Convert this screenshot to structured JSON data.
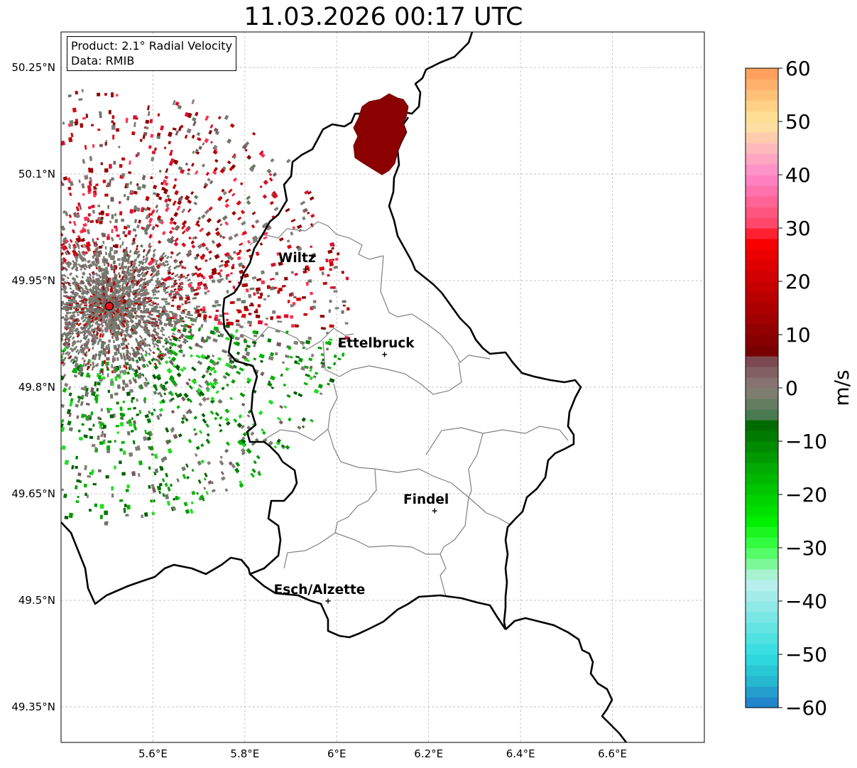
{
  "title": "11.03.2026 00:17 UTC",
  "info": {
    "product": "Product: 2.1° Radial Velocity",
    "data": "Data: RMIB"
  },
  "lat_ticks": [
    {
      "value": 50.25,
      "label": "50.25°N"
    },
    {
      "value": 50.1,
      "label": "50.1°N"
    },
    {
      "value": 49.95,
      "label": "49.95°N"
    },
    {
      "value": 49.8,
      "label": "49.8°N"
    },
    {
      "value": 49.65,
      "label": "49.65°N"
    },
    {
      "value": 49.5,
      "label": "49.5°N"
    },
    {
      "value": 49.35,
      "label": "49.35°N"
    }
  ],
  "lon_ticks": [
    {
      "value": 5.6,
      "label": "5.6°E"
    },
    {
      "value": 5.8,
      "label": "5.8°E"
    },
    {
      "value": 6.0,
      "label": "6°E"
    },
    {
      "value": 6.2,
      "label": "6.2°E"
    },
    {
      "value": 6.4,
      "label": "6.4°E"
    },
    {
      "value": 6.6,
      "label": "6.6°E"
    }
  ],
  "map_extent": {
    "lon_min": 5.4,
    "lon_max": 6.8,
    "lat_min": 49.3,
    "lat_max": 50.3
  },
  "radar": {
    "lon": 5.505,
    "lat": 49.914,
    "color": "#e8141b"
  },
  "cities": [
    {
      "name": "Wiltz",
      "lon": 5.932,
      "lat": 49.966
    },
    {
      "name": "Ettelbruck",
      "lon": 6.104,
      "lat": 49.846
    },
    {
      "name": "Findel",
      "lon": 6.213,
      "lat": 49.626
    },
    {
      "name": "Esch/Alzette",
      "lon": 5.981,
      "lat": 49.499
    }
  ],
  "colorbar": {
    "label": "m/s",
    "min": -60,
    "max": 60,
    "ticks": [
      60,
      50,
      40,
      30,
      20,
      10,
      0,
      -10,
      -20,
      -30,
      -40,
      -50,
      -60
    ],
    "tick_labels": [
      "60",
      "50",
      "40",
      "30",
      "20",
      "10",
      "0",
      "−10",
      "−20",
      "−30",
      "−40",
      "−50",
      "−60"
    ],
    "stops": [
      {
        "v": -60,
        "c": "#1f78c8"
      },
      {
        "v": -55,
        "c": "#25b8d0"
      },
      {
        "v": -50,
        "c": "#30dde0"
      },
      {
        "v": -40,
        "c": "#9aeae8"
      },
      {
        "v": -36,
        "c": "#c0f0ee"
      },
      {
        "v": -34,
        "c": "#90f4b0"
      },
      {
        "v": -30,
        "c": "#40ff50"
      },
      {
        "v": -25,
        "c": "#00ee00"
      },
      {
        "v": -15,
        "c": "#00aa00"
      },
      {
        "v": -6,
        "c": "#006400"
      },
      {
        "v": -5,
        "c": "#4a7a50"
      },
      {
        "v": 0,
        "c": "#8a7f78"
      },
      {
        "v": 6,
        "c": "#7a3e48"
      },
      {
        "v": 7,
        "c": "#7a0000"
      },
      {
        "v": 20,
        "c": "#cc0000"
      },
      {
        "v": 28,
        "c": "#ff0000"
      },
      {
        "v": 30,
        "c": "#ff4060"
      },
      {
        "v": 40,
        "c": "#ff88cc"
      },
      {
        "v": 45,
        "c": "#ffbbbb"
      },
      {
        "v": 50,
        "c": "#ffe79a"
      },
      {
        "v": 60,
        "c": "#ff9955"
      }
    ]
  },
  "colors": {
    "border": "#000000",
    "districts": "#808080",
    "grid": "#b0b0b0",
    "receding_red": "#c00000",
    "approaching_green": "#009900",
    "near_zero_grey": "#7e7e78",
    "storm_cell": "#8b0000"
  }
}
